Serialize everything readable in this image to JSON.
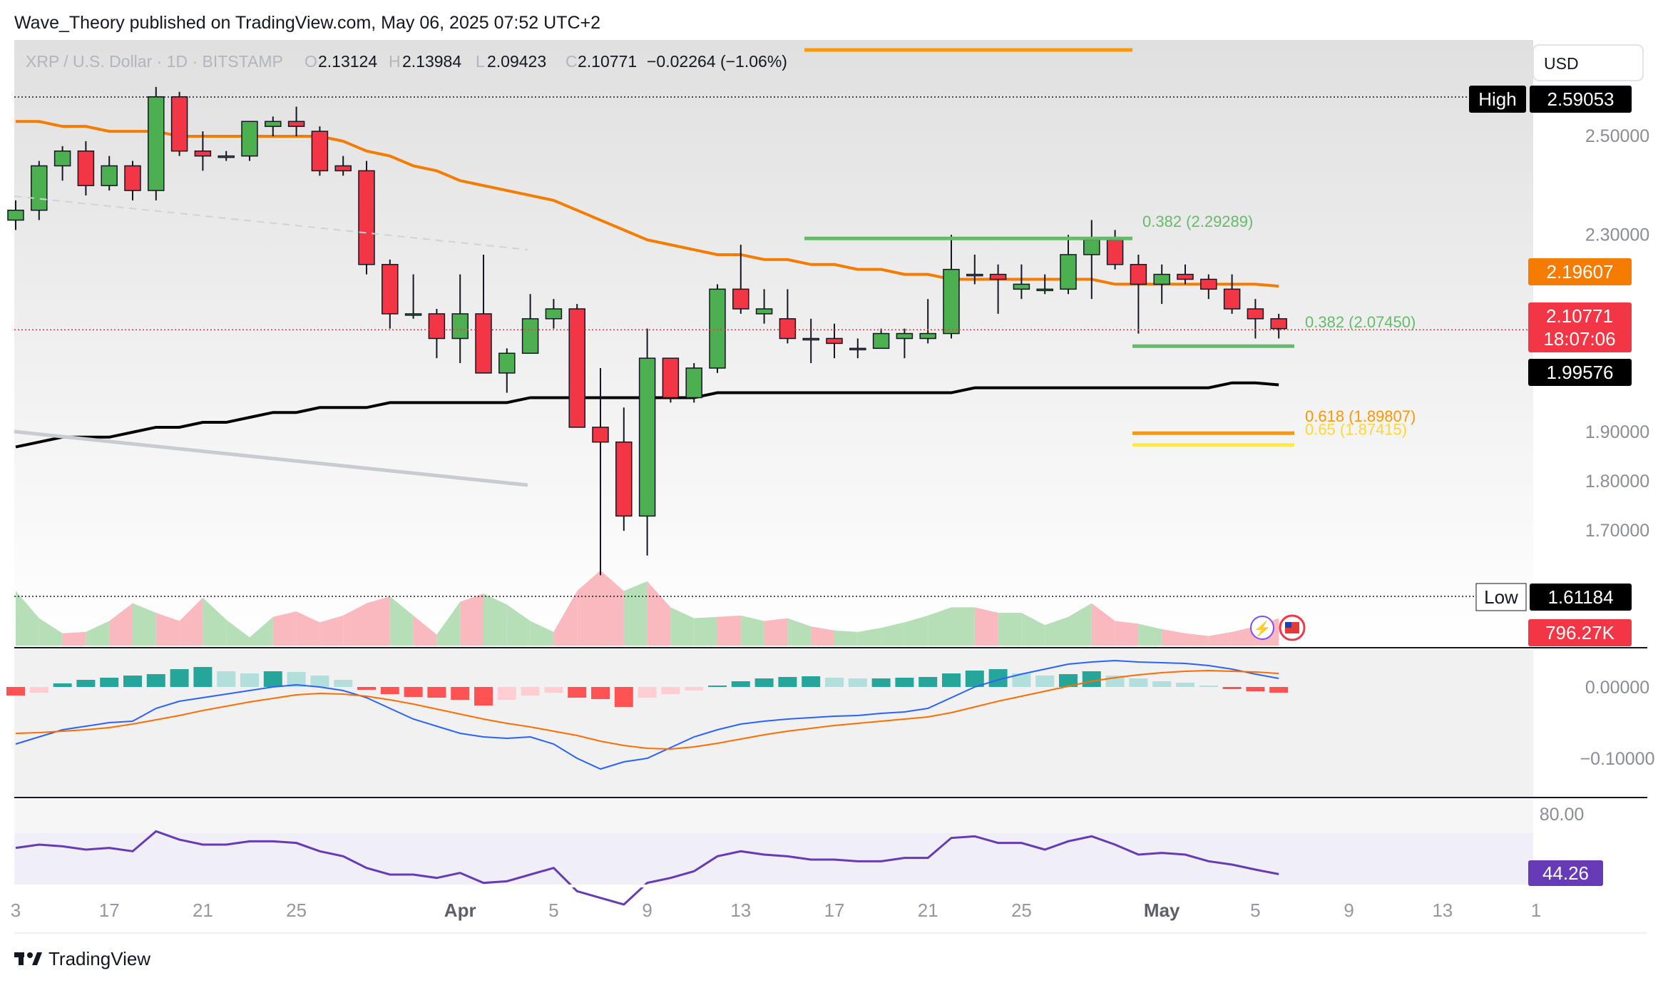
{
  "header": {
    "publish_line": "Wave_Theory published on TradingView.com, May 06, 2025 07:52 UTC+2",
    "symbol": "XRP / U.S. Dollar · 1D · BITSTAMP",
    "o_label": "O",
    "o_value": "2.13124",
    "h_label": "H",
    "h_value": "2.13984",
    "l_label": "L",
    "l_value": "2.09423",
    "c_label": "C",
    "c_value": "2.10771",
    "change": "−0.02264 (−1.06%)"
  },
  "currency_button": "USD",
  "footer": {
    "logo_text": "TradingView"
  },
  "colors": {
    "up": "#4caf50",
    "down": "#f23645",
    "ema_orange": "#f57c00",
    "sma_black": "#000000",
    "fib_green": "#66bb6a",
    "fib_orange": "#ff9800",
    "fib_yellow": "#ffeb3b",
    "macd_blue": "#2962ff",
    "signal_orange": "#ff6d00",
    "rsi_purple": "#673ab7",
    "price_red": "#f23645"
  },
  "chart_data": {
    "type": "candlestick",
    "price_axis_ticks": [
      "2.50000",
      "2.30000",
      "1.90000",
      "1.80000",
      "1.70000"
    ],
    "price_axis_values": [
      2.5,
      2.3,
      1.9,
      1.8,
      1.7
    ],
    "x_ticks": [
      {
        "label": "3",
        "index": 0
      },
      {
        "label": "17",
        "index": 4
      },
      {
        "label": "21",
        "index": 8
      },
      {
        "label": "25",
        "index": 12
      },
      {
        "label": "Apr",
        "index": 19
      },
      {
        "label": "5",
        "index": 23
      },
      {
        "label": "9",
        "index": 27
      },
      {
        "label": "13",
        "index": 31
      },
      {
        "label": "17",
        "index": 35
      },
      {
        "label": "21",
        "index": 39
      },
      {
        "label": "25",
        "index": 43
      },
      {
        "label": "May",
        "index": 49
      },
      {
        "label": "5",
        "index": 53
      },
      {
        "label": "9",
        "index": 57
      },
      {
        "label": "13",
        "index": 61
      },
      {
        "label": "1",
        "index": 65
      }
    ],
    "candles": [
      {
        "o": 2.33,
        "h": 2.37,
        "l": 2.31,
        "c": 2.35
      },
      {
        "o": 2.35,
        "h": 2.45,
        "l": 2.33,
        "c": 2.44
      },
      {
        "o": 2.44,
        "h": 2.48,
        "l": 2.41,
        "c": 2.47
      },
      {
        "o": 2.47,
        "h": 2.49,
        "l": 2.38,
        "c": 2.4
      },
      {
        "o": 2.4,
        "h": 2.46,
        "l": 2.39,
        "c": 2.44
      },
      {
        "o": 2.44,
        "h": 2.45,
        "l": 2.37,
        "c": 2.39
      },
      {
        "o": 2.39,
        "h": 2.6,
        "l": 2.37,
        "c": 2.58
      },
      {
        "o": 2.58,
        "h": 2.59,
        "l": 2.46,
        "c": 2.47
      },
      {
        "o": 2.47,
        "h": 2.51,
        "l": 2.43,
        "c": 2.46
      },
      {
        "o": 2.46,
        "h": 2.47,
        "l": 2.45,
        "c": 2.46
      },
      {
        "o": 2.46,
        "h": 2.53,
        "l": 2.45,
        "c": 2.53
      },
      {
        "o": 2.52,
        "h": 2.54,
        "l": 2.5,
        "c": 2.53
      },
      {
        "o": 2.53,
        "h": 2.56,
        "l": 2.5,
        "c": 2.52
      },
      {
        "o": 2.51,
        "h": 2.52,
        "l": 2.42,
        "c": 2.43
      },
      {
        "o": 2.44,
        "h": 2.46,
        "l": 2.42,
        "c": 2.43
      },
      {
        "o": 2.43,
        "h": 2.45,
        "l": 2.22,
        "c": 2.24
      },
      {
        "o": 2.24,
        "h": 2.25,
        "l": 2.11,
        "c": 2.14
      },
      {
        "o": 2.14,
        "h": 2.22,
        "l": 2.13,
        "c": 2.14
      },
      {
        "o": 2.14,
        "h": 2.15,
        "l": 2.05,
        "c": 2.09
      },
      {
        "o": 2.09,
        "h": 2.22,
        "l": 2.04,
        "c": 2.14
      },
      {
        "o": 2.14,
        "h": 2.26,
        "l": 2.02,
        "c": 2.02
      },
      {
        "o": 2.02,
        "h": 2.07,
        "l": 1.98,
        "c": 2.06
      },
      {
        "o": 2.06,
        "h": 2.18,
        "l": 2.06,
        "c": 2.13
      },
      {
        "o": 2.13,
        "h": 2.17,
        "l": 2.11,
        "c": 2.15
      },
      {
        "o": 2.15,
        "h": 2.16,
        "l": 1.91,
        "c": 1.91
      },
      {
        "o": 1.91,
        "h": 2.03,
        "l": 1.61,
        "c": 1.88
      },
      {
        "o": 1.88,
        "h": 1.95,
        "l": 1.7,
        "c": 1.73
      },
      {
        "o": 1.73,
        "h": 2.11,
        "l": 1.65,
        "c": 2.05
      },
      {
        "o": 2.05,
        "h": 2.05,
        "l": 1.96,
        "c": 1.97
      },
      {
        "o": 1.97,
        "h": 2.04,
        "l": 1.96,
        "c": 2.03
      },
      {
        "o": 2.03,
        "h": 2.2,
        "l": 2.02,
        "c": 2.19
      },
      {
        "o": 2.19,
        "h": 2.28,
        "l": 2.14,
        "c": 2.15
      },
      {
        "o": 2.14,
        "h": 2.19,
        "l": 2.12,
        "c": 2.15
      },
      {
        "o": 2.13,
        "h": 2.19,
        "l": 2.08,
        "c": 2.09
      },
      {
        "o": 2.09,
        "h": 2.13,
        "l": 2.04,
        "c": 2.09
      },
      {
        "o": 2.09,
        "h": 2.12,
        "l": 2.05,
        "c": 2.08
      },
      {
        "o": 2.07,
        "h": 2.09,
        "l": 2.05,
        "c": 2.07
      },
      {
        "o": 2.07,
        "h": 2.11,
        "l": 2.07,
        "c": 2.1
      },
      {
        "o": 2.09,
        "h": 2.11,
        "l": 2.05,
        "c": 2.1
      },
      {
        "o": 2.09,
        "h": 2.17,
        "l": 2.08,
        "c": 2.1
      },
      {
        "o": 2.1,
        "h": 2.3,
        "l": 2.09,
        "c": 2.23
      },
      {
        "o": 2.22,
        "h": 2.26,
        "l": 2.2,
        "c": 2.22
      },
      {
        "o": 2.22,
        "h": 2.24,
        "l": 2.14,
        "c": 2.21
      },
      {
        "o": 2.19,
        "h": 2.24,
        "l": 2.17,
        "c": 2.2
      },
      {
        "o": 2.19,
        "h": 2.22,
        "l": 2.18,
        "c": 2.19
      },
      {
        "o": 2.19,
        "h": 2.3,
        "l": 2.18,
        "c": 2.26
      },
      {
        "o": 2.26,
        "h": 2.33,
        "l": 2.17,
        "c": 2.29
      },
      {
        "o": 2.29,
        "h": 2.31,
        "l": 2.23,
        "c": 2.24
      },
      {
        "o": 2.24,
        "h": 2.26,
        "l": 2.1,
        "c": 2.2
      },
      {
        "o": 2.2,
        "h": 2.24,
        "l": 2.16,
        "c": 2.22
      },
      {
        "o": 2.22,
        "h": 2.24,
        "l": 2.2,
        "c": 2.21
      },
      {
        "o": 2.21,
        "h": 2.22,
        "l": 2.17,
        "c": 2.19
      },
      {
        "o": 2.19,
        "h": 2.22,
        "l": 2.14,
        "c": 2.15
      },
      {
        "o": 2.15,
        "h": 2.17,
        "l": 2.09,
        "c": 2.13
      },
      {
        "o": 2.13,
        "h": 2.14,
        "l": 2.09,
        "c": 2.11
      }
    ],
    "ema": [
      2.53,
      2.53,
      2.52,
      2.52,
      2.51,
      2.51,
      2.51,
      2.5,
      2.5,
      2.5,
      2.5,
      2.5,
      2.5,
      2.5,
      2.49,
      2.47,
      2.46,
      2.44,
      2.43,
      2.41,
      2.4,
      2.39,
      2.38,
      2.37,
      2.35,
      2.33,
      2.31,
      2.29,
      2.28,
      2.27,
      2.26,
      2.26,
      2.25,
      2.25,
      2.24,
      2.24,
      2.23,
      2.23,
      2.22,
      2.22,
      2.21,
      2.21,
      2.21,
      2.21,
      2.21,
      2.21,
      2.21,
      2.2,
      2.2,
      2.2,
      2.2,
      2.2,
      2.2,
      2.2,
      2.196
    ],
    "sma200": [
      1.87,
      1.88,
      1.89,
      1.89,
      1.89,
      1.9,
      1.91,
      1.91,
      1.92,
      1.92,
      1.93,
      1.94,
      1.94,
      1.95,
      1.95,
      1.95,
      1.96,
      1.96,
      1.96,
      1.96,
      1.96,
      1.96,
      1.97,
      1.97,
      1.97,
      1.97,
      1.97,
      1.97,
      1.97,
      1.97,
      1.98,
      1.98,
      1.98,
      1.98,
      1.98,
      1.98,
      1.98,
      1.98,
      1.98,
      1.98,
      1.98,
      1.99,
      1.99,
      1.99,
      1.99,
      1.99,
      1.99,
      1.99,
      1.99,
      1.99,
      1.99,
      1.99,
      2.0,
      2.0,
      1.996
    ],
    "volume": [
      40,
      20,
      9,
      10,
      18,
      31,
      24,
      18,
      35,
      19,
      6,
      21,
      25,
      17,
      22,
      31,
      36,
      22,
      8,
      32,
      38,
      30,
      18,
      10,
      40,
      55,
      40,
      47,
      28,
      20,
      21,
      22,
      18,
      20,
      14,
      11,
      10,
      13,
      17,
      22,
      28,
      28,
      24,
      24,
      15,
      21,
      31,
      18,
      16,
      12,
      9,
      7,
      10,
      14,
      20
    ],
    "macd_hist": [
      -0.012,
      -0.008,
      0.005,
      0.01,
      0.013,
      0.016,
      0.018,
      0.025,
      0.028,
      0.022,
      0.019,
      0.022,
      0.021,
      0.016,
      0.01,
      -0.004,
      -0.01,
      -0.014,
      -0.015,
      -0.018,
      -0.026,
      -0.018,
      -0.012,
      -0.008,
      -0.015,
      -0.017,
      -0.028,
      -0.015,
      -0.01,
      -0.005,
      0.002,
      0.008,
      0.012,
      0.014,
      0.015,
      0.013,
      0.012,
      0.012,
      0.013,
      0.014,
      0.019,
      0.023,
      0.025,
      0.019,
      0.016,
      0.018,
      0.022,
      0.016,
      0.012,
      0.008,
      0.006,
      0.002,
      -0.003,
      -0.006,
      -0.008
    ],
    "macd_line": [
      -0.08,
      -0.07,
      -0.06,
      -0.055,
      -0.05,
      -0.048,
      -0.03,
      -0.02,
      -0.015,
      -0.01,
      -0.005,
      0.0,
      0.003,
      0.0,
      -0.005,
      -0.015,
      -0.03,
      -0.045,
      -0.055,
      -0.065,
      -0.07,
      -0.072,
      -0.07,
      -0.08,
      -0.1,
      -0.115,
      -0.105,
      -0.1,
      -0.085,
      -0.07,
      -0.06,
      -0.052,
      -0.048,
      -0.045,
      -0.043,
      -0.041,
      -0.04,
      -0.037,
      -0.035,
      -0.03,
      -0.015,
      0.0,
      0.01,
      0.018,
      0.025,
      0.032,
      0.035,
      0.037,
      0.035,
      0.034,
      0.033,
      0.03,
      0.025,
      0.018,
      0.012
    ],
    "signal_line": [
      -0.065,
      -0.064,
      -0.062,
      -0.06,
      -0.057,
      -0.052,
      -0.046,
      -0.04,
      -0.033,
      -0.027,
      -0.021,
      -0.016,
      -0.011,
      -0.009,
      -0.01,
      -0.013,
      -0.018,
      -0.024,
      -0.031,
      -0.038,
      -0.045,
      -0.051,
      -0.056,
      -0.062,
      -0.068,
      -0.076,
      -0.082,
      -0.086,
      -0.087,
      -0.084,
      -0.079,
      -0.073,
      -0.067,
      -0.062,
      -0.058,
      -0.054,
      -0.051,
      -0.048,
      -0.045,
      -0.042,
      -0.036,
      -0.028,
      -0.02,
      -0.013,
      -0.006,
      0.001,
      0.008,
      0.013,
      0.017,
      0.02,
      0.022,
      0.023,
      0.022,
      0.021,
      0.019
    ],
    "rsi": [
      60,
      62,
      61,
      59,
      60,
      58,
      70,
      65,
      62,
      62,
      64,
      64,
      63,
      58,
      55,
      48,
      44,
      44,
      42,
      45,
      39,
      40,
      44,
      48,
      34,
      30,
      26,
      39,
      42,
      46,
      55,
      58,
      56,
      55,
      53,
      53,
      52,
      52,
      54,
      54,
      66,
      67,
      63,
      63,
      59,
      64,
      67,
      62,
      56,
      57,
      56,
      52,
      50,
      47,
      44.26
    ],
    "fib_levels": [
      {
        "label": "0.382 (2.29289)",
        "value": 2.29289,
        "color": "#66bb6a"
      },
      {
        "label": "0.382 (2.07450)",
        "value": 2.0745,
        "color": "#66bb6a"
      },
      {
        "label": "0.618 (1.89807)",
        "value": 1.89807,
        "color": "#ff9800"
      },
      {
        "label": "0.65 (1.87415)",
        "value": 1.87415,
        "color": "#ffeb3b"
      }
    ],
    "labels": {
      "high_tag": "High",
      "high_value": "2.59053",
      "low_tag": "Low",
      "low_value": "1.61184",
      "ema_value": "2.19607",
      "price_value": "2.10771",
      "countdown": "18:07:06",
      "sma_value": "1.99576",
      "volume_value": "796.27K",
      "macd_ticks": [
        "0.00000",
        "−0.10000"
      ],
      "rsi_tick": "80.00",
      "rsi_value": "44.26"
    }
  }
}
